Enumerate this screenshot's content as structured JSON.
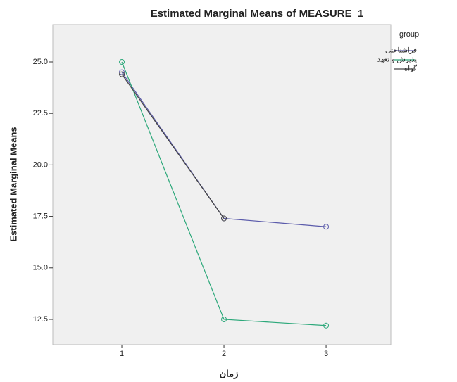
{
  "chart_data": {
    "type": "line",
    "title": "Estimated Marginal Means of MEASURE_1",
    "x_label": "زمان",
    "y_label": "Estimated Marginal Means",
    "legend_title": "group",
    "x": [
      1,
      2,
      3
    ],
    "xlim": [
      0.324,
      3.634
    ],
    "xticks": [
      1,
      2,
      3
    ],
    "ylim": [
      11.27,
      26.81
    ],
    "yticks": [
      {
        "value": 12.5,
        "label": "12.5"
      },
      {
        "value": 15,
        "label": "15.0"
      },
      {
        "value": 17.5,
        "label": "17.5"
      },
      {
        "value": 20,
        "label": "20.0"
      },
      {
        "value": 22.5,
        "label": "22.5"
      },
      {
        "value": 25,
        "label": "25.0"
      }
    ],
    "series": [
      {
        "name": "فراشناختی",
        "color": "#5b5bab",
        "values": [
          24.5,
          17.4,
          17.0
        ]
      },
      {
        "name": "پذیرش و تعهد",
        "color": "#2ca87a",
        "values": [
          25.0,
          12.5,
          12.2
        ]
      },
      {
        "name": "گواه",
        "color": "#444444",
        "values": [
          24.4,
          17.4,
          null
        ]
      }
    ]
  }
}
